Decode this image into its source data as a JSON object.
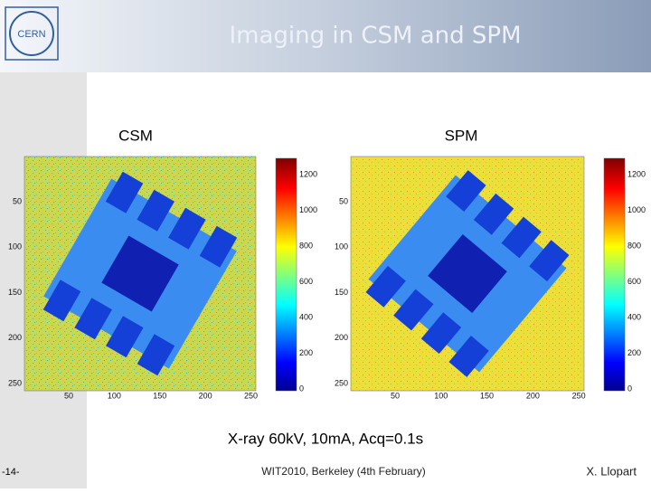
{
  "header": {
    "title": "Imaging in CSM and SPM"
  },
  "panels": [
    {
      "label": "CSM",
      "xticks": [
        50,
        100,
        150,
        200,
        250
      ],
      "yticks": [
        50,
        100,
        150,
        200,
        250
      ],
      "colorbar_ticks": [
        1200,
        1000,
        800,
        600,
        400,
        200,
        0
      ]
    },
    {
      "label": "SPM",
      "xticks": [
        50,
        100,
        150,
        200,
        250
      ],
      "yticks": [
        50,
        100,
        150,
        200,
        250
      ],
      "colorbar_ticks": [
        1200,
        1000,
        800,
        600,
        400,
        200,
        0
      ]
    }
  ],
  "caption": "X-ray 60kV, 10mA, Acq=0.1s",
  "footer": {
    "page": "-14-",
    "event": "WIT2010, Berkeley (4th February)",
    "author": "X. Llopart"
  }
}
